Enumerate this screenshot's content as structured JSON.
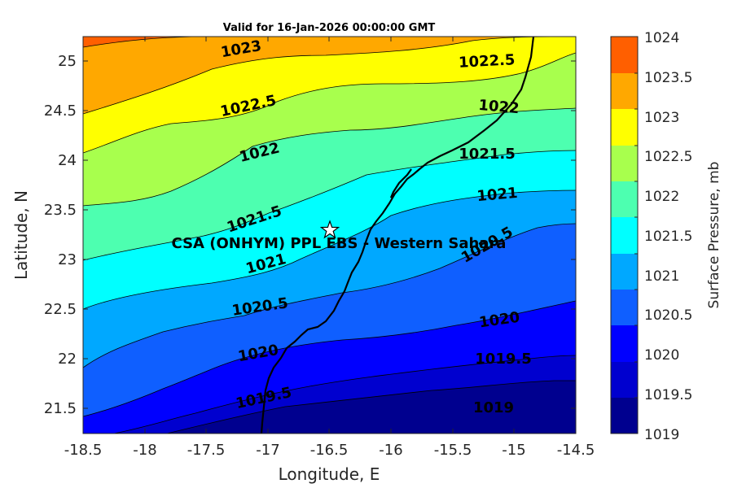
{
  "title": "Valid for 16-Jan-2026 00:00:00 GMT",
  "axes": {
    "xlabel": "Longitude, E",
    "ylabel": "Latitude, N",
    "xlim": [
      -18.5,
      -14.5
    ],
    "ylim": [
      21.25,
      25.25
    ],
    "xticks": [
      "-18.5",
      "-18",
      "-17.5",
      "-17",
      "-16.5",
      "-16",
      "-15.5",
      "-15",
      "-14.5"
    ],
    "yticks": [
      "25",
      "24.5",
      "24",
      "23.5",
      "23",
      "22.5",
      "22",
      "21.5"
    ]
  },
  "colorbar": {
    "label": "Surface Pressure, mb",
    "ticks": [
      "1024",
      "1023.5",
      "1023",
      "1022.5",
      "1022",
      "1021.5",
      "1021",
      "1020.5",
      "1020",
      "1019.5",
      "1019"
    ],
    "colors": [
      "#00008f",
      "#0000cf",
      "#0000ff",
      "#0f5fff",
      "#00a8ff",
      "#00ffff",
      "#4dffb0",
      "#a8ff4d",
      "#ffff00",
      "#ffa800",
      "#ff5f00",
      "#ff0000"
    ]
  },
  "site": {
    "name": "CSA (ONHYM) PPL EBS  - Western Sahara",
    "lon": -16.5,
    "lat": 23.3
  },
  "chart_data": {
    "type": "contour",
    "variable": "Surface Pressure",
    "units": "mb",
    "levels": [
      1019,
      1019.5,
      1020,
      1020.5,
      1021,
      1021.5,
      1022,
      1022.5,
      1023,
      1023.5,
      1024
    ],
    "contour_labels": [
      {
        "text": "1023",
        "lon": -17.3,
        "lat": 25.1
      },
      {
        "text": "1022.5",
        "lon": -15.1,
        "lat": 25.0
      },
      {
        "text": "1022.5",
        "lon": -17.3,
        "lat": 24.55
      },
      {
        "text": "1022",
        "lon": -15.0,
        "lat": 24.55
      },
      {
        "text": "1022",
        "lon": -17.1,
        "lat": 24.05
      },
      {
        "text": "1021.5",
        "lon": -15.4,
        "lat": 24.05
      },
      {
        "text": "1021.5",
        "lon": -16.9,
        "lat": 23.45
      },
      {
        "text": "1021",
        "lon": -15.2,
        "lat": 23.65
      },
      {
        "text": "1021",
        "lon": -17.0,
        "lat": 23.0
      },
      {
        "text": "1020.5",
        "lon": -15.3,
        "lat": 23.1
      },
      {
        "text": "1020.5",
        "lon": -17.0,
        "lat": 22.55
      },
      {
        "text": "1020",
        "lon": -15.0,
        "lat": 22.4
      },
      {
        "text": "1020",
        "lon": -17.1,
        "lat": 22.05
      },
      {
        "text": "1019.5",
        "lon": -15.1,
        "lat": 22.0
      },
      {
        "text": "1019.5",
        "lon": -17.2,
        "lat": 21.6
      },
      {
        "text": "1019",
        "lon": -15.1,
        "lat": 21.6
      }
    ]
  }
}
